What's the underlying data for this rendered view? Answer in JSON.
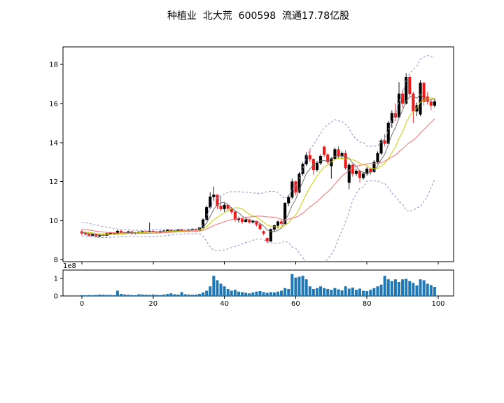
{
  "title": "种植业  北大荒  600598  流通17.78亿股",
  "chart_data": {
    "type": "candlestick+volume",
    "title": "种植业  北大荒  600598  流通17.78亿股",
    "x_range": [
      -5.3,
      104.3
    ],
    "x_ticks": [
      0,
      20,
      40,
      60,
      80,
      100
    ],
    "grid": false,
    "legend": "none",
    "price_panel": {
      "ylim": [
        7.9,
        18.9
      ],
      "y_ticks": [
        8,
        10,
        12,
        14,
        16,
        18
      ],
      "up_color": "#000000",
      "down_color": "#ee1a1a",
      "overlays": [
        {
          "name": "ma5",
          "kind": "sma",
          "window": 5,
          "color": "#707070",
          "style": "solid"
        },
        {
          "name": "ma10",
          "kind": "sma",
          "window": 10,
          "color": "#cccc00",
          "style": "solid"
        },
        {
          "name": "ma20",
          "kind": "sma",
          "window": 20,
          "color": "#ff6e6e",
          "style": "solid"
        },
        {
          "name": "boll-upper",
          "kind": "boll_upper",
          "window": 20,
          "k": 2.2,
          "color": "#8c8ce0",
          "style": "dashed"
        },
        {
          "name": "boll-lower",
          "kind": "boll_lower",
          "window": 20,
          "k": 2.2,
          "color": "#8c8ce0",
          "style": "dashed"
        }
      ]
    },
    "volume_panel": {
      "ylim": [
        0,
        1.48
      ],
      "y_ticks": [
        0,
        1
      ],
      "offset_label": "1e8",
      "bar_color": "#1f77b4"
    },
    "ohlc": {
      "open": [
        9.45,
        9.35,
        9.3,
        9.24,
        9.3,
        9.2,
        9.27,
        9.24,
        9.34,
        9.38,
        9.31,
        9.47,
        9.39,
        9.36,
        9.44,
        9.34,
        9.38,
        9.42,
        9.45,
        9.41,
        9.47,
        9.44,
        9.4,
        9.46,
        9.48,
        9.52,
        9.43,
        9.48,
        9.53,
        9.49,
        9.46,
        9.52,
        9.56,
        9.5,
        9.64,
        10.05,
        10.68,
        11.22,
        11.32,
        10.75,
        10.6,
        10.8,
        10.62,
        10.45,
        10.05,
        10.1,
        9.95,
        10.05,
        9.92,
        9.98,
        9.8,
        9.45,
        9.1,
        8.95,
        9.55,
        9.75,
        9.95,
        9.85,
        10.9,
        11.2,
        12.0,
        11.45,
        12.4,
        12.9,
        13.35,
        13.15,
        12.6,
        12.95,
        13.78,
        13.38,
        12.8,
        13.18,
        13.65,
        13.3,
        13.45,
        11.95,
        12.85,
        12.4,
        12.55,
        12.2,
        12.4,
        12.65,
        12.5,
        13.0,
        13.45,
        14.1,
        13.95,
        15.0,
        15.5,
        15.3,
        16.5,
        16.0,
        17.35,
        16.5,
        15.6,
        15.45,
        17.05,
        16.35,
        16.1,
        15.9
      ],
      "high": [
        9.55,
        9.42,
        9.36,
        9.34,
        9.32,
        9.3,
        9.34,
        9.38,
        9.42,
        9.41,
        9.52,
        9.52,
        9.45,
        9.48,
        9.46,
        9.42,
        9.46,
        9.49,
        9.48,
        9.9,
        9.52,
        9.47,
        9.5,
        9.52,
        9.56,
        9.53,
        9.52,
        9.57,
        9.58,
        9.54,
        9.56,
        9.61,
        9.59,
        9.68,
        10.12,
        10.78,
        11.45,
        11.75,
        11.35,
        11.3,
        10.9,
        10.85,
        10.7,
        10.5,
        10.2,
        10.15,
        10.1,
        10.1,
        10.05,
        10.0,
        9.85,
        9.5,
        9.15,
        9.6,
        9.8,
        10.0,
        10.05,
        10.95,
        11.3,
        12.15,
        12.05,
        12.5,
        13.0,
        13.5,
        13.65,
        13.2,
        13.05,
        13.4,
        13.85,
        13.45,
        13.25,
        13.75,
        13.8,
        13.55,
        13.6,
        12.95,
        12.9,
        12.65,
        12.6,
        12.5,
        12.75,
        12.7,
        13.1,
        13.55,
        14.2,
        14.45,
        15.1,
        15.65,
        16.0,
        17.1,
        16.7,
        17.55,
        17.45,
        16.6,
        16.05,
        17.2,
        17.1,
        16.6,
        16.2,
        16.25
      ],
      "low": [
        9.25,
        9.26,
        9.18,
        9.2,
        9.14,
        9.16,
        9.2,
        9.21,
        9.29,
        9.27,
        9.29,
        9.34,
        9.31,
        9.33,
        9.29,
        9.29,
        9.32,
        9.35,
        9.37,
        9.38,
        9.39,
        9.36,
        9.38,
        9.41,
        9.43,
        9.39,
        9.4,
        9.44,
        9.45,
        9.42,
        9.44,
        9.47,
        9.46,
        9.48,
        9.6,
        10.0,
        10.6,
        11.0,
        10.6,
        10.5,
        10.45,
        10.5,
        10.35,
        9.95,
        9.9,
        9.85,
        9.9,
        9.85,
        9.85,
        9.7,
        9.5,
        9.25,
        8.85,
        8.9,
        9.4,
        9.6,
        9.75,
        9.8,
        10.75,
        11.1,
        11.3,
        11.4,
        12.3,
        12.8,
        13.0,
        12.35,
        12.5,
        12.85,
        13.25,
        12.9,
        12.15,
        13.1,
        13.2,
        13.15,
        12.6,
        11.6,
        12.25,
        12.3,
        11.95,
        12.1,
        12.3,
        12.35,
        12.45,
        12.9,
        13.35,
        13.8,
        13.9,
        14.75,
        15.1,
        15.25,
        15.8,
        15.95,
        16.3,
        15.0,
        15.35,
        15.35,
        15.9,
        15.95,
        15.65,
        15.8
      ],
      "close": [
        9.35,
        9.3,
        9.24,
        9.3,
        9.2,
        9.27,
        9.24,
        9.34,
        9.38,
        9.31,
        9.47,
        9.39,
        9.36,
        9.44,
        9.34,
        9.38,
        9.42,
        9.45,
        9.41,
        9.47,
        9.44,
        9.4,
        9.46,
        9.48,
        9.52,
        9.43,
        9.48,
        9.53,
        9.49,
        9.46,
        9.52,
        9.56,
        9.5,
        9.64,
        10.05,
        10.68,
        11.22,
        11.32,
        10.75,
        10.6,
        10.8,
        10.62,
        10.45,
        10.05,
        10.1,
        9.95,
        10.05,
        9.92,
        9.98,
        9.8,
        9.58,
        9.35,
        8.95,
        9.55,
        9.75,
        9.95,
        9.85,
        10.9,
        11.2,
        12.0,
        11.45,
        12.4,
        12.9,
        13.35,
        13.15,
        12.6,
        12.95,
        13.3,
        13.38,
        13.0,
        13.18,
        13.65,
        13.3,
        13.45,
        12.7,
        12.85,
        12.4,
        12.55,
        12.2,
        12.4,
        12.65,
        12.5,
        13.0,
        13.45,
        14.1,
        13.95,
        15.0,
        15.5,
        15.3,
        16.5,
        16.0,
        17.35,
        16.5,
        15.6,
        15.9,
        17.05,
        16.1,
        16.1,
        15.9,
        16.1
      ]
    },
    "volume_1e8": [
      0.05,
      0.04,
      0.05,
      0.04,
      0.06,
      0.08,
      0.07,
      0.06,
      0.06,
      0.05,
      0.3,
      0.12,
      0.08,
      0.07,
      0.05,
      0.04,
      0.1,
      0.08,
      0.07,
      0.06,
      0.08,
      0.06,
      0.05,
      0.08,
      0.12,
      0.15,
      0.1,
      0.08,
      0.22,
      0.1,
      0.08,
      0.07,
      0.08,
      0.12,
      0.2,
      0.3,
      0.55,
      1.15,
      0.9,
      0.7,
      0.55,
      0.4,
      0.3,
      0.35,
      0.25,
      0.22,
      0.18,
      0.15,
      0.2,
      0.25,
      0.28,
      0.22,
      0.18,
      0.22,
      0.2,
      0.25,
      0.3,
      0.45,
      0.4,
      1.25,
      1.05,
      1.1,
      1.15,
      0.95,
      0.55,
      0.4,
      0.45,
      0.55,
      0.45,
      0.4,
      0.35,
      0.45,
      0.38,
      0.32,
      0.55,
      0.42,
      0.48,
      0.35,
      0.42,
      0.3,
      0.28,
      0.35,
      0.45,
      0.55,
      0.65,
      1.15,
      0.95,
      0.85,
      0.95,
      0.8,
      0.95,
      0.98,
      0.85,
      0.75,
      0.6,
      0.95,
      0.9,
      0.7,
      0.62,
      0.52
    ],
    "ma_warmup_closes": [
      9.9,
      9.85,
      9.8,
      9.88,
      9.75,
      9.7,
      9.72,
      9.65,
      9.6,
      9.62,
      9.55,
      9.5,
      9.52,
      9.45,
      9.48,
      9.42,
      9.4,
      9.44,
      9.38,
      9.42
    ]
  }
}
